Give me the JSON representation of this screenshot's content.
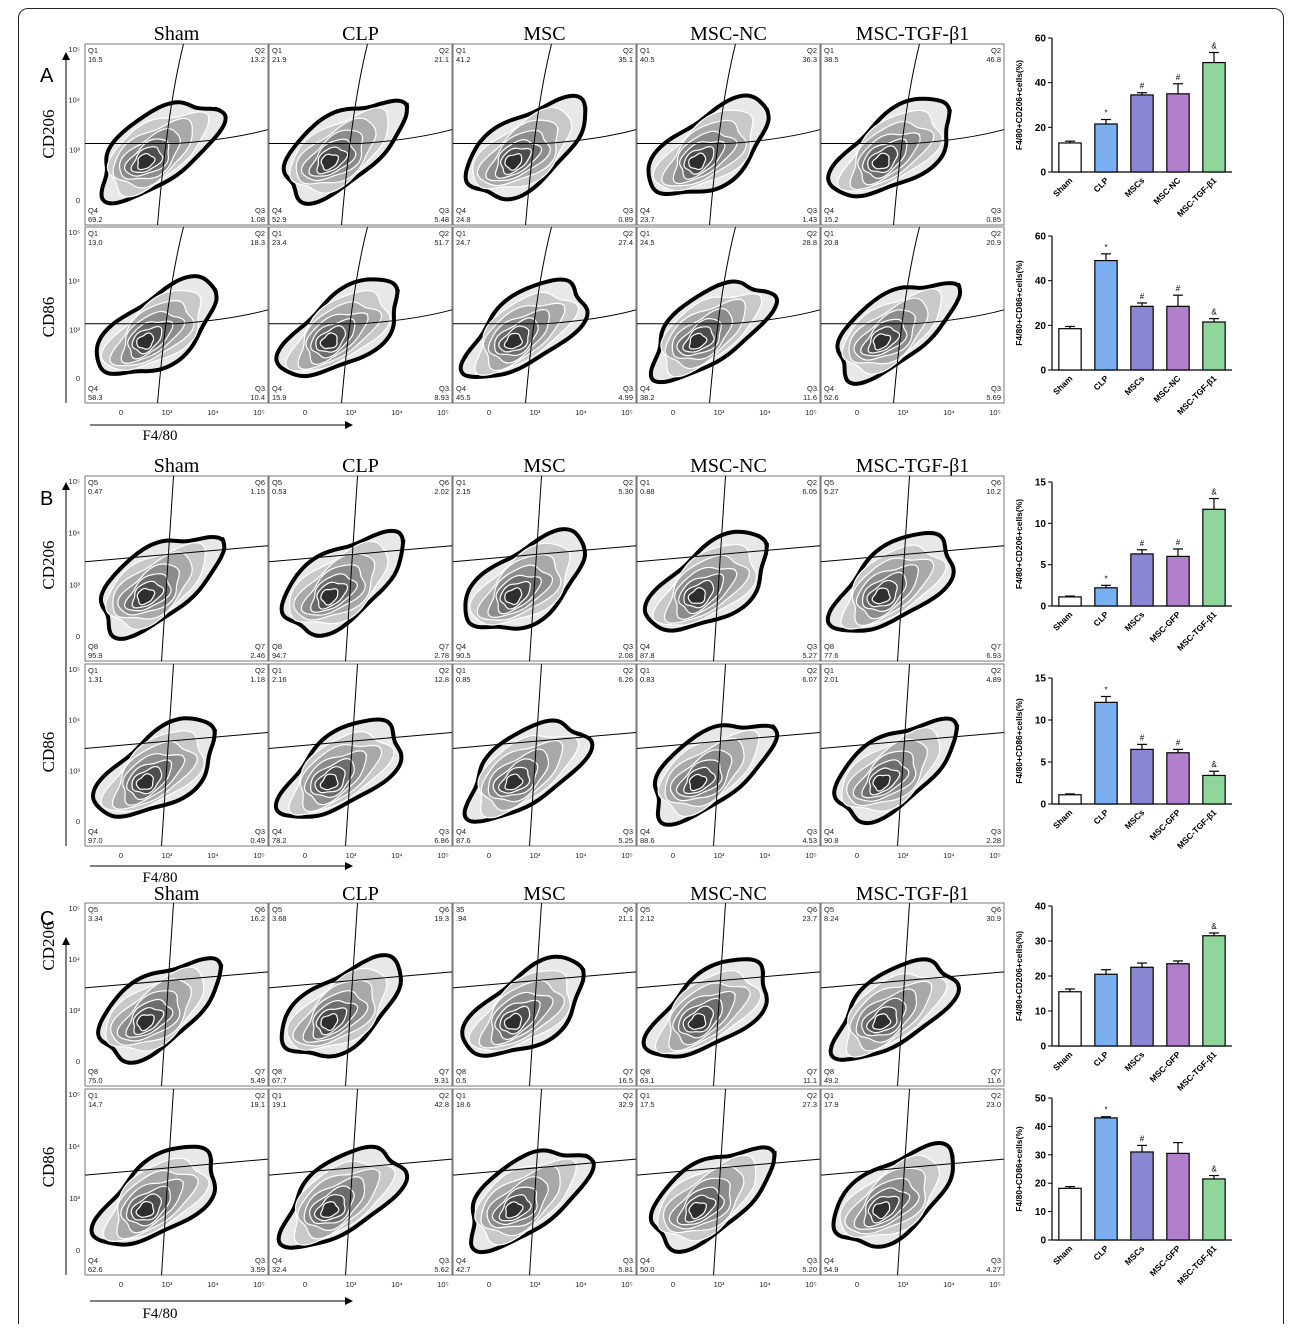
{
  "panels": [
    {
      "letter": "A",
      "groups": [
        "Sham",
        "CLP",
        "MSC",
        "MSC-NC",
        "MSC-TGF-β1"
      ],
      "rows": [
        {
          "marker": "CD206",
          "quads": [
            {
              "tl": "Q1",
              "tlv": "16.5",
              "tr": "Q2",
              "trv": "13.2",
              "bl": "Q4",
              "blv": "69.2",
              "br": "Q3",
              "brv": "1.08"
            },
            {
              "tl": "Q1",
              "tlv": "21.9",
              "tr": "Q2",
              "trv": "21.1",
              "bl": "Q4",
              "blv": "52.9",
              "br": "Q3",
              "brv": "5.48"
            },
            {
              "tl": "Q1",
              "tlv": "41.2",
              "tr": "Q2",
              "trv": "35.1",
              "bl": "Q4",
              "blv": "24.8",
              "br": "Q3",
              "brv": "0.89"
            },
            {
              "tl": "Q1",
              "tlv": "40.5",
              "tr": "Q2",
              "trv": "36.3",
              "bl": "Q4",
              "blv": "23.7",
              "br": "Q3",
              "brv": "1.43"
            },
            {
              "tl": "Q1",
              "tlv": "38.5",
              "tr": "Q2",
              "trv": "46.8",
              "bl": "Q4",
              "blv": "15.2",
              "br": "Q3",
              "brv": "0.85"
            }
          ]
        },
        {
          "marker": "CD86",
          "quads": [
            {
              "tl": "Q1",
              "tlv": "13.0",
              "tr": "Q2",
              "trv": "18.3",
              "bl": "Q4",
              "blv": "58.3",
              "br": "Q3",
              "brv": "10.4"
            },
            {
              "tl": "Q1",
              "tlv": "23.4",
              "tr": "Q2",
              "trv": "51.7",
              "bl": "Q4",
              "blv": "15.9",
              "br": "Q3",
              "brv": "8.93"
            },
            {
              "tl": "Q1",
              "tlv": "24.7",
              "tr": "Q2",
              "trv": "27.4",
              "bl": "Q4",
              "blv": "45.5",
              "br": "Q3",
              "brv": "4.99"
            },
            {
              "tl": "Q1",
              "tlv": "24.5",
              "tr": "Q2",
              "trv": "28.8",
              "bl": "Q4",
              "blv": "38.2",
              "br": "Q3",
              "brv": "11.6"
            },
            {
              "tl": "Q1",
              "tlv": "20.8",
              "tr": "Q2",
              "trv": "20.9",
              "bl": "Q4",
              "blv": "52.6",
              "br": "Q3",
              "brv": "5.69"
            }
          ]
        }
      ],
      "xaxis": "F4/80",
      "xticks": [
        "0",
        "10³",
        "10⁴",
        "10⁵"
      ],
      "yticks": [
        "10⁵",
        "10⁴",
        "10³",
        "0"
      ]
    },
    {
      "letter": "B",
      "groups": [
        "Sham",
        "CLP",
        "MSC",
        "MSC-NC",
        "MSC-TGF-β1"
      ],
      "rows": [
        {
          "marker": "CD206",
          "quads": [
            {
              "tl": "Q5",
              "tlv": "0.47",
              "tr": "Q6",
              "trv": "1.15",
              "bl": "Q8",
              "blv": "95.9",
              "br": "Q7",
              "brv": "2.46"
            },
            {
              "tl": "Q5",
              "tlv": "0.53",
              "tr": "Q6",
              "trv": "2.02",
              "bl": "Q8",
              "blv": "94.7",
              "br": "Q7",
              "brv": "2.78"
            },
            {
              "tl": "Q1",
              "tlv": "2.15",
              "tr": "Q2",
              "trv": "5.30",
              "bl": "Q4",
              "blv": "90.5",
              "br": "Q3",
              "brv": "2.08"
            },
            {
              "tl": "Q1",
              "tlv": "0.88",
              "tr": "Q2",
              "trv": "6.05",
              "bl": "Q4",
              "blv": "87.8",
              "br": "Q3",
              "brv": "5.27"
            },
            {
              "tl": "Q5",
              "tlv": "5.27",
              "tr": "Q6",
              "trv": "10.2",
              "bl": "Q8",
              "blv": "77.6",
              "br": "Q7",
              "brv": "6.93"
            }
          ]
        },
        {
          "marker": "CD86",
          "quads": [
            {
              "tl": "Q1",
              "tlv": "1.31",
              "tr": "Q2",
              "trv": "1.18",
              "bl": "Q4",
              "blv": "97.0",
              "br": "Q3",
              "brv": "0.49"
            },
            {
              "tl": "Q1",
              "tlv": "2.16",
              "tr": "Q2",
              "trv": "12.8",
              "bl": "Q4",
              "blv": "78.2",
              "br": "Q3",
              "brv": "6.86"
            },
            {
              "tl": "Q1",
              "tlv": "0.85",
              "tr": "Q2",
              "trv": "6.26",
              "bl": "Q4",
              "blv": "87.6",
              "br": "Q3",
              "brv": "5.25"
            },
            {
              "tl": "Q1",
              "tlv": "0.83",
              "tr": "Q2",
              "trv": "6.07",
              "bl": "Q4",
              "blv": "88.6",
              "br": "Q3",
              "brv": "4.53"
            },
            {
              "tl": "Q1",
              "tlv": "2.01",
              "tr": "Q2",
              "trv": "4.89",
              "bl": "Q4",
              "blv": "90.8",
              "br": "Q3",
              "brv": "2.28"
            }
          ]
        }
      ],
      "xaxis": "F4/80",
      "xticks": [
        "0",
        "10³",
        "10⁴",
        "10⁵"
      ],
      "yticks": [
        "10⁵",
        "10⁴",
        "10³",
        "0"
      ]
    },
    {
      "letter": "C",
      "groups": [
        "Sham",
        "CLP",
        "MSC",
        "MSC-NC",
        "MSC-TGF-β1"
      ],
      "rows": [
        {
          "marker": "CD206",
          "quads": [
            {
              "tl": "Q5",
              "tlv": "3.34",
              "tr": "Q6",
              "trv": "16.2",
              "bl": "Q8",
              "blv": "75.0",
              "br": "Q7",
              "brv": "5.49"
            },
            {
              "tl": "Q5",
              "tlv": "3.68",
              "tr": "Q6",
              "trv": "19.3",
              "bl": "Q8",
              "blv": "67.7",
              "br": "Q7",
              "brv": "9.31"
            },
            {
              "tl": "35",
              "tlv": ".94",
              "tr": "Q6",
              "trv": "21.1",
              "bl": "Q8",
              "blv": "0.5",
              "br": "Q7",
              "brv": "16.5"
            },
            {
              "tl": "Q5",
              "tlv": "2.12",
              "tr": "Q6",
              "trv": "23.7",
              "bl": "Q8",
              "blv": "63.1",
              "br": "Q7",
              "brv": "11.1"
            },
            {
              "tl": "Q5",
              "tlv": "8.24",
              "tr": "Q6",
              "trv": "30.9",
              "bl": "Q8",
              "blv": "49.2",
              "br": "Q7",
              "brv": "11.6"
            }
          ]
        },
        {
          "marker": "CD86",
          "quads": [
            {
              "tl": "Q1",
              "tlv": "14.7",
              "tr": "Q2",
              "trv": "19.1",
              "bl": "Q4",
              "blv": "62.6",
              "br": "Q3",
              "brv": "3.59"
            },
            {
              "tl": "Q1",
              "tlv": "19.1",
              "tr": "Q2",
              "trv": "42.8",
              "bl": "Q4",
              "blv": "32.4",
              "br": "Q3",
              "brv": "5.62"
            },
            {
              "tl": "Q1",
              "tlv": "18.6",
              "tr": "Q2",
              "trv": "32.9",
              "bl": "Q4",
              "blv": "42.7",
              "br": "Q3",
              "brv": "5.81"
            },
            {
              "tl": "Q1",
              "tlv": "17.5",
              "tr": "Q2",
              "trv": "27.3",
              "bl": "Q4",
              "blv": "50.0",
              "br": "Q3",
              "brv": "5.20"
            },
            {
              "tl": "Q1",
              "tlv": "17.9",
              "tr": "Q2",
              "trv": "23.0",
              "bl": "Q4",
              "blv": "54.9",
              "br": "Q3",
              "brv": "4.27"
            }
          ]
        }
      ],
      "xaxis": "F4/80",
      "xticks": [
        "0",
        "10³",
        "10⁴",
        "10⁵"
      ],
      "yticks": [
        "10⁵",
        "10⁴",
        "10³",
        "0"
      ]
    }
  ],
  "chart_data": [
    {
      "type": "bar",
      "categories": [
        "Sham",
        "CLP",
        "MSCs",
        "MSC-NC",
        "MSC-TGF-β1"
      ],
      "values": [
        13,
        21.5,
        34.5,
        35,
        49
      ],
      "errors": [
        0.8,
        2,
        1,
        4.5,
        4.5
      ],
      "annotations": [
        "",
        "*",
        "#",
        "#",
        "&"
      ],
      "ylabel": "F4/80+CD206+cells(%)",
      "ylim": [
        0,
        60
      ],
      "yticks": [
        0,
        20,
        40,
        60
      ],
      "colors": [
        "#ffffff",
        "#7ab0f2",
        "#8a86d4",
        "#b27fcc",
        "#8fd69a"
      ]
    },
    {
      "type": "bar",
      "categories": [
        "Sham",
        "CLP",
        "MSCs",
        "MSC-NC",
        "MSC-TGF-β1"
      ],
      "values": [
        18.5,
        49,
        28.5,
        28.5,
        21.5
      ],
      "errors": [
        1,
        3,
        1.5,
        5,
        1.5
      ],
      "annotations": [
        "",
        "*",
        "#",
        "#",
        "&"
      ],
      "ylabel": "F4/80+CD86+cells(%)",
      "ylim": [
        0,
        60
      ],
      "yticks": [
        0,
        20,
        40,
        60
      ],
      "colors": [
        "#ffffff",
        "#7ab0f2",
        "#8a86d4",
        "#b27fcc",
        "#8fd69a"
      ]
    },
    {
      "type": "bar",
      "categories": [
        "Sham",
        "CLP",
        "MSCs",
        "MSC-GFP",
        "MSC-TGF-β1"
      ],
      "values": [
        1.1,
        2.2,
        6.3,
        6,
        11.7
      ],
      "errors": [
        0.1,
        0.3,
        0.5,
        0.9,
        1.3
      ],
      "annotations": [
        "",
        "*",
        "#",
        "#",
        "&"
      ],
      "ylabel": "F4/80+CD206+cells(%)",
      "ylim": [
        0,
        15
      ],
      "yticks": [
        0,
        5,
        10,
        15
      ],
      "colors": [
        "#ffffff",
        "#7ab0f2",
        "#8a86d4",
        "#b27fcc",
        "#8fd69a"
      ]
    },
    {
      "type": "bar",
      "categories": [
        "Sham",
        "CLP",
        "MSCs",
        "MSC-GFP",
        "MSC-TGF-β1"
      ],
      "values": [
        1.1,
        12.1,
        6.5,
        6.1,
        3.4
      ],
      "errors": [
        0.1,
        0.7,
        0.6,
        0.4,
        0.5
      ],
      "annotations": [
        "",
        "*",
        "#",
        "#",
        "&"
      ],
      "ylabel": "F4/80+CD86+cells(%)",
      "ylim": [
        0,
        15
      ],
      "yticks": [
        0,
        5,
        10,
        15
      ],
      "colors": [
        "#ffffff",
        "#7ab0f2",
        "#8a86d4",
        "#b27fcc",
        "#8fd69a"
      ]
    },
    {
      "type": "bar",
      "categories": [
        "Sham",
        "CLP",
        "MSCs",
        "MSC-GFP",
        "MSC-TGF-β1"
      ],
      "values": [
        15.5,
        20.5,
        22.5,
        23.5,
        31.5
      ],
      "errors": [
        0.8,
        1.3,
        1.2,
        0.8,
        0.8
      ],
      "annotations": [
        "",
        "",
        "",
        "",
        "&"
      ],
      "ylabel": "F4/80+CD206+cells(%)",
      "ylim": [
        0,
        40
      ],
      "yticks": [
        0,
        10,
        20,
        30,
        40
      ],
      "colors": [
        "#ffffff",
        "#7ab0f2",
        "#8a86d4",
        "#b27fcc",
        "#8fd69a"
      ]
    },
    {
      "type": "bar",
      "categories": [
        "Sham",
        "CLP",
        "MSCs",
        "MSC-GFP",
        "MSC-TGF-β1"
      ],
      "values": [
        18.2,
        43,
        31,
        30.5,
        21.5
      ],
      "errors": [
        0.6,
        0.4,
        2.3,
        3.8,
        1.2
      ],
      "annotations": [
        "",
        "*",
        "#",
        "",
        "&"
      ],
      "ylabel": "F4/80+CD86+cells(%)",
      "ylim": [
        0,
        50
      ],
      "yticks": [
        0,
        10,
        20,
        30,
        40,
        50
      ],
      "colors": [
        "#ffffff",
        "#7ab0f2",
        "#8a86d4",
        "#b27fcc",
        "#8fd69a"
      ]
    }
  ]
}
